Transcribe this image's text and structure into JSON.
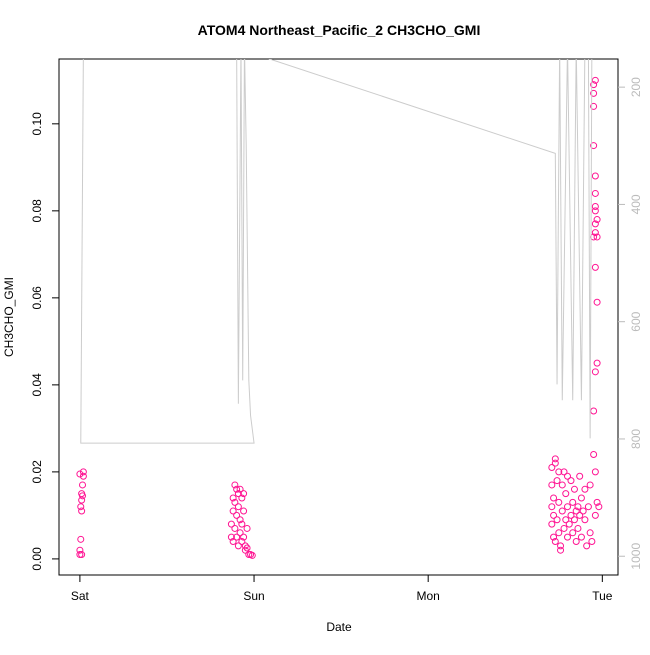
{
  "chart_data": {
    "type": "scatter",
    "title": "ATOM4 Northeast_Pacific_2 CH3CHO_GMI",
    "xlabel": "Date",
    "ylabel": "CH3CHO_GMI",
    "xlim": [
      -0.12,
      3.09
    ],
    "xticks": [
      {
        "value": 0,
        "label": "Sat"
      },
      {
        "value": 1,
        "label": "Sun"
      },
      {
        "value": 2,
        "label": "Mon"
      },
      {
        "value": 3,
        "label": "Tue"
      }
    ],
    "ylim": [
      -0.0037,
      0.1149
    ],
    "yticks": [
      {
        "value": 0,
        "label": "0.00"
      },
      {
        "value": 0.02,
        "label": "0.02"
      },
      {
        "value": 0.04,
        "label": "0.04"
      },
      {
        "value": 0.06,
        "label": "0.06"
      },
      {
        "value": 0.08,
        "label": "0.08"
      },
      {
        "value": 0.1,
        "label": "0.10"
      }
    ],
    "y2lim": [
      1032,
      152
    ],
    "y2ticks": [
      200,
      400,
      600,
      800,
      1000
    ],
    "series": [
      {
        "color": "#ff1493",
        "x": [
          0.0,
          0.01,
          0.0,
          0.005,
          0.01,
          0.005,
          0.01,
          0.015,
          0.01,
          0.015,
          0.02,
          0.02,
          0.0,
          0.87,
          0.87,
          0.88,
          0.88,
          0.88,
          0.89,
          0.89,
          0.89,
          0.9,
          0.9,
          0.9,
          0.91,
          0.91,
          0.91,
          0.92,
          0.92,
          0.92,
          0.93,
          0.93,
          0.93,
          0.94,
          0.94,
          0.95,
          0.95,
          0.96,
          0.97,
          0.98,
          0.99,
          0.96,
          0.94,
          2.71,
          2.71,
          2.71,
          2.71,
          2.72,
          2.72,
          2.72,
          2.73,
          2.73,
          2.73,
          2.74,
          2.74,
          2.75,
          2.75,
          2.75,
          2.76,
          2.76,
          2.77,
          2.77,
          2.78,
          2.78,
          2.79,
          2.79,
          2.8,
          2.8,
          2.8,
          2.81,
          2.82,
          2.82,
          2.83,
          2.83,
          2.84,
          2.84,
          2.85,
          2.85,
          2.86,
          2.86,
          2.87,
          2.87,
          2.88,
          2.88,
          2.89,
          2.9,
          2.9,
          2.91,
          2.92,
          2.93,
          2.93,
          2.94,
          2.95,
          2.95,
          2.96,
          2.96,
          2.97,
          2.98,
          2.96,
          2.97,
          2.97,
          2.96,
          2.95,
          2.96,
          2.97,
          2.96,
          2.97,
          2.96,
          2.96,
          2.96,
          2.96,
          2.95,
          2.95,
          2.95,
          2.95,
          2.96
        ],
        "values": [
          0.001,
          0.001,
          0.002,
          0.0045,
          0.011,
          0.012,
          0.0135,
          0.0145,
          0.015,
          0.017,
          0.019,
          0.02,
          0.0195,
          0.005,
          0.008,
          0.011,
          0.004,
          0.014,
          0.017,
          0.013,
          0.007,
          0.016,
          0.01,
          0.005,
          0.015,
          0.012,
          0.003,
          0.016,
          0.009,
          0.006,
          0.014,
          0.008,
          0.004,
          0.011,
          0.005,
          0.003,
          0.002,
          0.0025,
          0.001,
          0.001,
          0.0008,
          0.007,
          0.015,
          0.021,
          0.017,
          0.012,
          0.008,
          0.005,
          0.014,
          0.01,
          0.023,
          0.022,
          0.004,
          0.018,
          0.009,
          0.02,
          0.013,
          0.006,
          0.003,
          0.002,
          0.017,
          0.011,
          0.02,
          0.007,
          0.015,
          0.009,
          0.019,
          0.012,
          0.005,
          0.008,
          0.018,
          0.01,
          0.006,
          0.013,
          0.009,
          0.016,
          0.011,
          0.004,
          0.012,
          0.007,
          0.019,
          0.01,
          0.014,
          0.005,
          0.011,
          0.009,
          0.016,
          0.003,
          0.012,
          0.006,
          0.017,
          0.004,
          0.024,
          0.034,
          0.02,
          0.01,
          0.013,
          0.012,
          0.043,
          0.045,
          0.059,
          0.067,
          0.074,
          0.075,
          0.074,
          0.077,
          0.078,
          0.08,
          0.081,
          0.084,
          0.088,
          0.095,
          0.104,
          0.107,
          0.109,
          0.11
        ]
      },
      {
        "type": "line",
        "axis": "y2",
        "color": "#cccccc",
        "x": [
          0.02,
          0.005,
          1.0,
          0.98,
          0.97,
          0.955,
          0.945,
          0.935,
          0.925,
          0.91,
          0.9,
          1.09,
          2.73,
          2.74,
          2.755,
          2.77,
          2.8,
          2.83,
          2.85,
          2.88,
          2.9,
          2.92,
          2.93,
          2.94
        ],
        "values": [
          140,
          807,
          807,
          760,
          700,
          300,
          130,
          700,
          130,
          740,
          130,
          152,
          313,
          707,
          130,
          734,
          130,
          734,
          130,
          734,
          130,
          130,
          799,
          130
        ]
      }
    ]
  }
}
